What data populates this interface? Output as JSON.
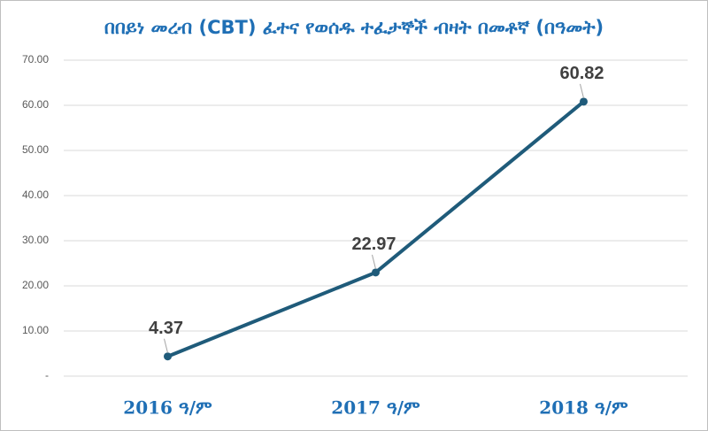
{
  "chart_data": {
    "type": "line",
    "title": "በበይነ መረብ (CBT) ፈተና የወሰዱ ተፈታኞች ብዛት በመቶኛ (በዓመት)",
    "categories": [
      "2016 ዓ/ም",
      "2017 ዓ/ም",
      "2018 ዓ/ም"
    ],
    "series": [
      {
        "name": "CBT",
        "color": "#1f5b7a",
        "values": [
          4.37,
          22.97,
          60.82
        ]
      }
    ],
    "ylim": [
      0,
      70
    ],
    "yticks": [
      {
        "value": 0,
        "label": "-"
      },
      {
        "value": 10,
        "label": "10.00"
      },
      {
        "value": 20,
        "label": "20.00"
      },
      {
        "value": 30,
        "label": "30.00"
      },
      {
        "value": 40,
        "label": "40.00"
      },
      {
        "value": 50,
        "label": "50.00"
      },
      {
        "value": 60,
        "label": "60.00"
      },
      {
        "value": 70,
        "label": "70.00"
      }
    ],
    "grid": true
  }
}
